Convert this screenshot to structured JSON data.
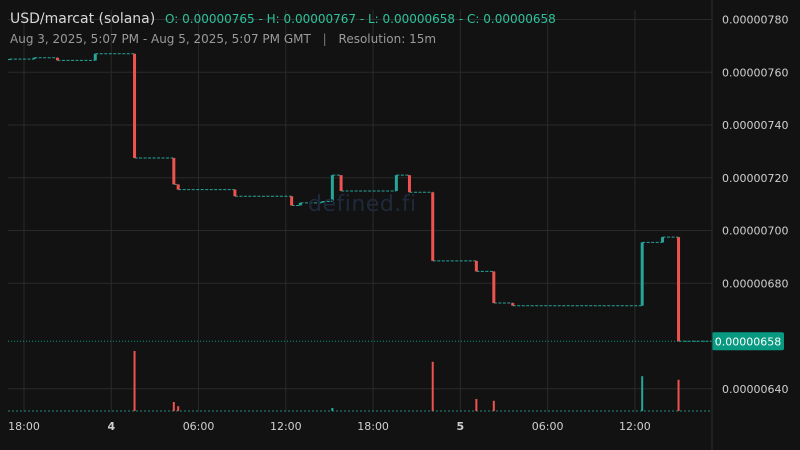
{
  "header": {
    "symbol": "USD/marcat (solana)",
    "ohlc": "O: 0.00000765 - H: 0.00000767 - L: 0.00000658 - C: 0.00000658",
    "range": "Aug 3, 2025, 5:07 PM - Aug 5, 2025, 5:07 PM GMT",
    "separator": "|",
    "resolution": "Resolution: 15m"
  },
  "watermark": "defined.fi",
  "colors": {
    "background": "#121212",
    "up": "#26a69a",
    "down": "#ef5350",
    "grid": "#2a2a2a",
    "price_badge": "#089981"
  },
  "chart_data": {
    "type": "candlestick",
    "y_ticks": [
      "0.00000780",
      "0.00000760",
      "0.00000740",
      "0.00000720",
      "0.00000700",
      "0.00000680",
      "0.00000640"
    ],
    "y_tick_values": [
      780,
      760,
      740,
      720,
      700,
      680,
      640
    ],
    "ylim": [
      631.2,
      783.6
    ],
    "x_ticks": [
      {
        "label": "18:00",
        "t": 0,
        "bold": false
      },
      {
        "label": "4",
        "t": 6,
        "bold": true
      },
      {
        "label": "06:00",
        "t": 12,
        "bold": false
      },
      {
        "label": "12:00",
        "t": 18,
        "bold": false
      },
      {
        "label": "18:00",
        "t": 24,
        "bold": false
      },
      {
        "label": "5",
        "t": 30,
        "bold": true
      },
      {
        "label": "06:00",
        "t": 36,
        "bold": false
      },
      {
        "label": "12:00",
        "t": 42,
        "bold": false
      }
    ],
    "xlim": [
      -1.1,
      47.3
    ],
    "last_price": {
      "label": "0.00000658",
      "value": 658
    },
    "value_scale_note": "y values are in units of 1e-8 (e.g. 765 = 0.00000765)",
    "candles": [
      {
        "t": -1.0,
        "o": 765,
        "c": 765
      },
      {
        "t": 0.7,
        "o": 765,
        "c": 765.5
      },
      {
        "t": 2.3,
        "o": 765.5,
        "c": 764.5
      },
      {
        "t": 4.9,
        "o": 764.5,
        "c": 767
      },
      {
        "t": 7.6,
        "o": 767,
        "c": 727.5
      },
      {
        "t": 10.3,
        "o": 727.5,
        "c": 717.5
      },
      {
        "t": 10.6,
        "o": 717.5,
        "c": 715.5
      },
      {
        "t": 14.5,
        "o": 715.5,
        "c": 713
      },
      {
        "t": 18.4,
        "o": 713,
        "c": 709.5
      },
      {
        "t": 19.0,
        "o": 709.5,
        "c": 710.5
      },
      {
        "t": 20.5,
        "o": 710.5,
        "c": 711
      },
      {
        "t": 21.2,
        "o": 711,
        "c": 721
      },
      {
        "t": 21.8,
        "o": 721,
        "c": 715
      },
      {
        "t": 25.6,
        "o": 715,
        "c": 721
      },
      {
        "t": 26.5,
        "o": 721,
        "c": 714.5
      },
      {
        "t": 28.1,
        "o": 714.5,
        "c": 688.5
      },
      {
        "t": 31.1,
        "o": 688.5,
        "c": 684.5
      },
      {
        "t": 32.3,
        "o": 684.5,
        "c": 672.5
      },
      {
        "t": 33.6,
        "o": 672.5,
        "c": 671.5
      },
      {
        "t": 42.5,
        "o": 671.5,
        "c": 695.5
      },
      {
        "t": 43.9,
        "o": 695.5,
        "c": 697.5
      },
      {
        "t": 45.0,
        "o": 697.5,
        "c": 658
      }
    ],
    "volume": [
      {
        "t": 7.6,
        "v": 1.0,
        "dir": "down"
      },
      {
        "t": 10.3,
        "v": 0.15,
        "dir": "down"
      },
      {
        "t": 10.6,
        "v": 0.08,
        "dir": "down"
      },
      {
        "t": 21.2,
        "v": 0.05,
        "dir": "up"
      },
      {
        "t": 28.1,
        "v": 0.82,
        "dir": "down"
      },
      {
        "t": 31.1,
        "v": 0.2,
        "dir": "down"
      },
      {
        "t": 32.3,
        "v": 0.17,
        "dir": "down"
      },
      {
        "t": 42.5,
        "v": 0.58,
        "dir": "up"
      },
      {
        "t": 45.0,
        "v": 0.52,
        "dir": "down"
      }
    ]
  }
}
